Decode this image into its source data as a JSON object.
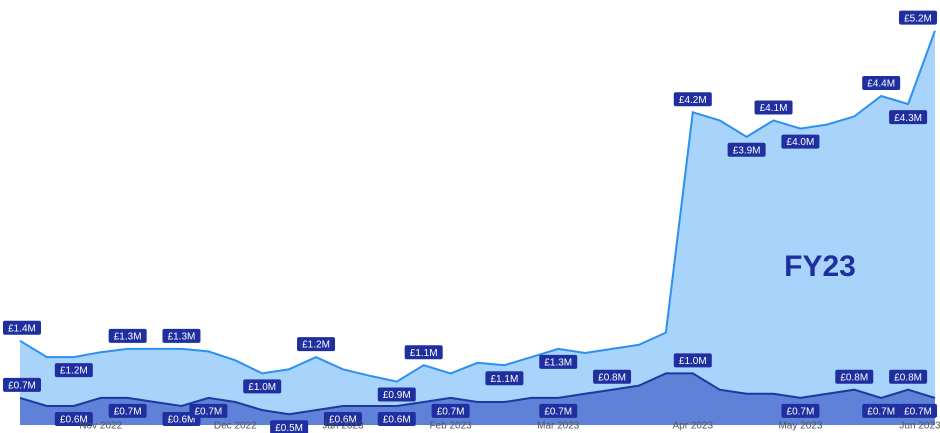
{
  "chart_data": {
    "type": "area",
    "annotation": "FY23",
    "categories": [
      null,
      null,
      null,
      "Nov 2022",
      null,
      null,
      null,
      null,
      "Dec 2022",
      null,
      null,
      null,
      "Jan 2023",
      null,
      null,
      null,
      "Feb 2023",
      null,
      null,
      null,
      "Mar 2023",
      null,
      null,
      null,
      null,
      "Apr 2023",
      null,
      null,
      null,
      "May 2023",
      null,
      null,
      null,
      null,
      "Jun 2023"
    ],
    "series": [
      {
        "name": "FY23",
        "color": "#2b90ef",
        "fill": "#a8d4fb",
        "values": [
          1.4,
          1.2,
          1.2,
          1.26,
          1.3,
          1.3,
          1.3,
          1.27,
          1.16,
          1.0,
          1.05,
          1.2,
          1.05,
          0.97,
          0.9,
          1.1,
          1.0,
          1.13,
          1.1,
          1.2,
          1.3,
          1.25,
          1.3,
          1.35,
          1.5,
          4.2,
          4.1,
          3.9,
          4.1,
          4.0,
          4.05,
          4.15,
          4.4,
          4.3,
          5.2
        ],
        "value_labels": [
          "£1.4M",
          null,
          "£1.2M",
          null,
          "£1.3M",
          null,
          "£1.3M",
          null,
          null,
          "£1.0M",
          null,
          "£1.2M",
          null,
          null,
          "£0.9M",
          "£1.1M",
          null,
          null,
          "£1.1M",
          null,
          "£1.3M",
          null,
          null,
          null,
          null,
          "£4.2M",
          null,
          "£3.9M",
          "£4.1M",
          "£4.0M",
          null,
          null,
          "£4.4M",
          "£4.3M",
          "£5.2M"
        ]
      },
      {
        "color": "#1b3a9e",
        "fill": "#5f82d8",
        "values": [
          0.7,
          0.6,
          0.6,
          0.7,
          0.7,
          0.65,
          0.6,
          0.7,
          0.65,
          0.55,
          0.5,
          0.55,
          0.6,
          0.6,
          0.6,
          0.65,
          0.7,
          0.65,
          0.65,
          0.7,
          0.7,
          0.75,
          0.8,
          0.85,
          1.0,
          1.0,
          0.8,
          0.75,
          0.75,
          0.7,
          0.75,
          0.8,
          0.7,
          0.8,
          0.7
        ],
        "value_labels": [
          "£0.7M",
          null,
          "£0.6M",
          null,
          "£0.7M",
          null,
          "£0.6M",
          "£0.7M",
          null,
          null,
          "£0.5M",
          null,
          "£0.6M",
          null,
          "£0.6M",
          null,
          "£0.7M",
          null,
          null,
          null,
          "£0.7M",
          null,
          "£0.8M",
          null,
          null,
          "£1.0M",
          null,
          null,
          null,
          "£0.7M",
          null,
          "£0.8M",
          "£0.7M",
          "£0.8M",
          "£0.7M"
        ]
      }
    ]
  }
}
